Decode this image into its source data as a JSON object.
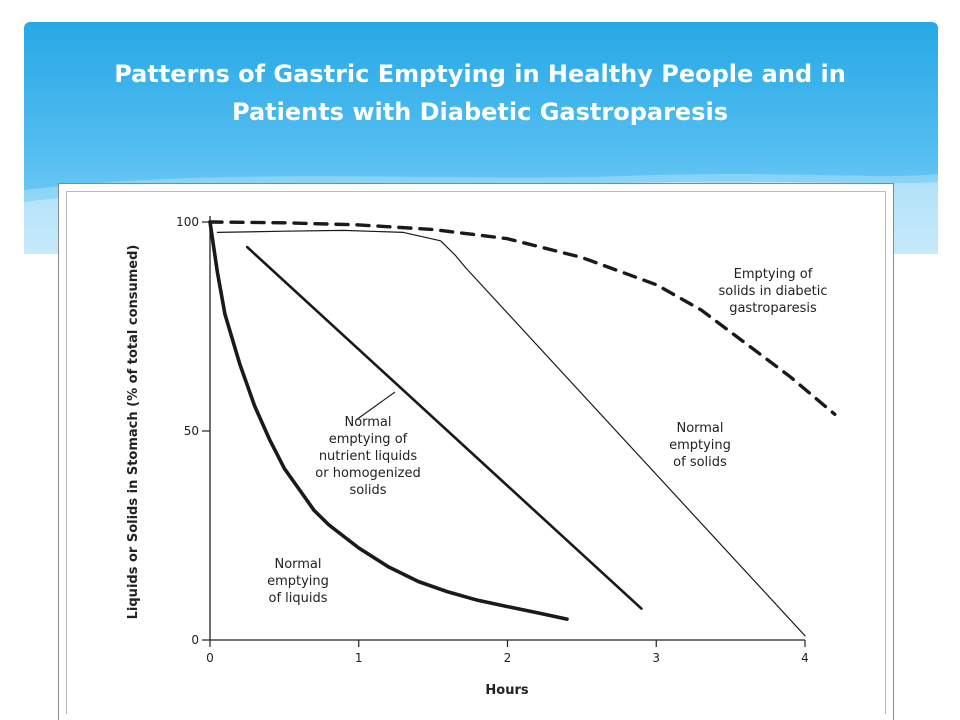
{
  "slide": {
    "title_line1": "Patterns of Gastric Emptying in Healthy People and in",
    "title_line2": "Patients with Diabetic Gastroparesis"
  },
  "colors": {
    "banner": "#27a8e6",
    "title_text": "#ffffff",
    "curves": "#1a1a1a"
  },
  "chart_data": {
    "type": "line",
    "title": "",
    "xlabel": "Hours",
    "ylabel": "Liquids or Solids in Stomach (% of total consumed)",
    "xlim": [
      0,
      4
    ],
    "ylim": [
      0,
      100
    ],
    "x_ticks": [
      0,
      1,
      2,
      3,
      4
    ],
    "y_ticks": [
      0,
      50,
      100
    ],
    "grid": false,
    "series": [
      {
        "key": "liquids",
        "style": "thick-solid",
        "annotation": [
          "Normal",
          "emptying",
          "of liquids"
        ],
        "points": [
          [
            0,
            100
          ],
          [
            0.05,
            88
          ],
          [
            0.1,
            78
          ],
          [
            0.2,
            66
          ],
          [
            0.3,
            56
          ],
          [
            0.4,
            48
          ],
          [
            0.5,
            41
          ],
          [
            0.6,
            36
          ],
          [
            0.7,
            31
          ],
          [
            0.8,
            27.5
          ],
          [
            1.0,
            22
          ],
          [
            1.2,
            17.5
          ],
          [
            1.4,
            14
          ],
          [
            1.6,
            11.5
          ],
          [
            1.8,
            9.5
          ],
          [
            2.0,
            8
          ],
          [
            2.2,
            6.5
          ],
          [
            2.4,
            5
          ]
        ]
      },
      {
        "key": "nutrient",
        "style": "medium-solid",
        "annotation": [
          "Normal",
          "emptying of",
          "nutrient liquids",
          "or homogenized",
          "solids"
        ],
        "points": [
          [
            0.25,
            94
          ],
          [
            2.9,
            7.5
          ]
        ]
      },
      {
        "key": "solids",
        "style": "thin-solid",
        "annotation": [
          "Normal",
          "emptying",
          "of solids"
        ],
        "points": [
          [
            0.05,
            97.5
          ],
          [
            0.5,
            97.8
          ],
          [
            0.9,
            98
          ],
          [
            1.3,
            97.5
          ],
          [
            1.55,
            95.5
          ],
          [
            1.65,
            92
          ],
          [
            1.72,
            89
          ],
          [
            4.0,
            1
          ]
        ]
      },
      {
        "key": "diabetic",
        "style": "thick-dashed",
        "annotation": [
          "Emptying of",
          "solids in diabetic",
          "gastroparesis"
        ],
        "points": [
          [
            0,
            100
          ],
          [
            0.5,
            99.8
          ],
          [
            1.0,
            99.3
          ],
          [
            1.5,
            98.2
          ],
          [
            2.0,
            96
          ],
          [
            2.5,
            91.5
          ],
          [
            3.0,
            85
          ],
          [
            3.3,
            79
          ],
          [
            3.6,
            71
          ],
          [
            3.9,
            63
          ],
          [
            4.2,
            54
          ]
        ]
      }
    ]
  }
}
